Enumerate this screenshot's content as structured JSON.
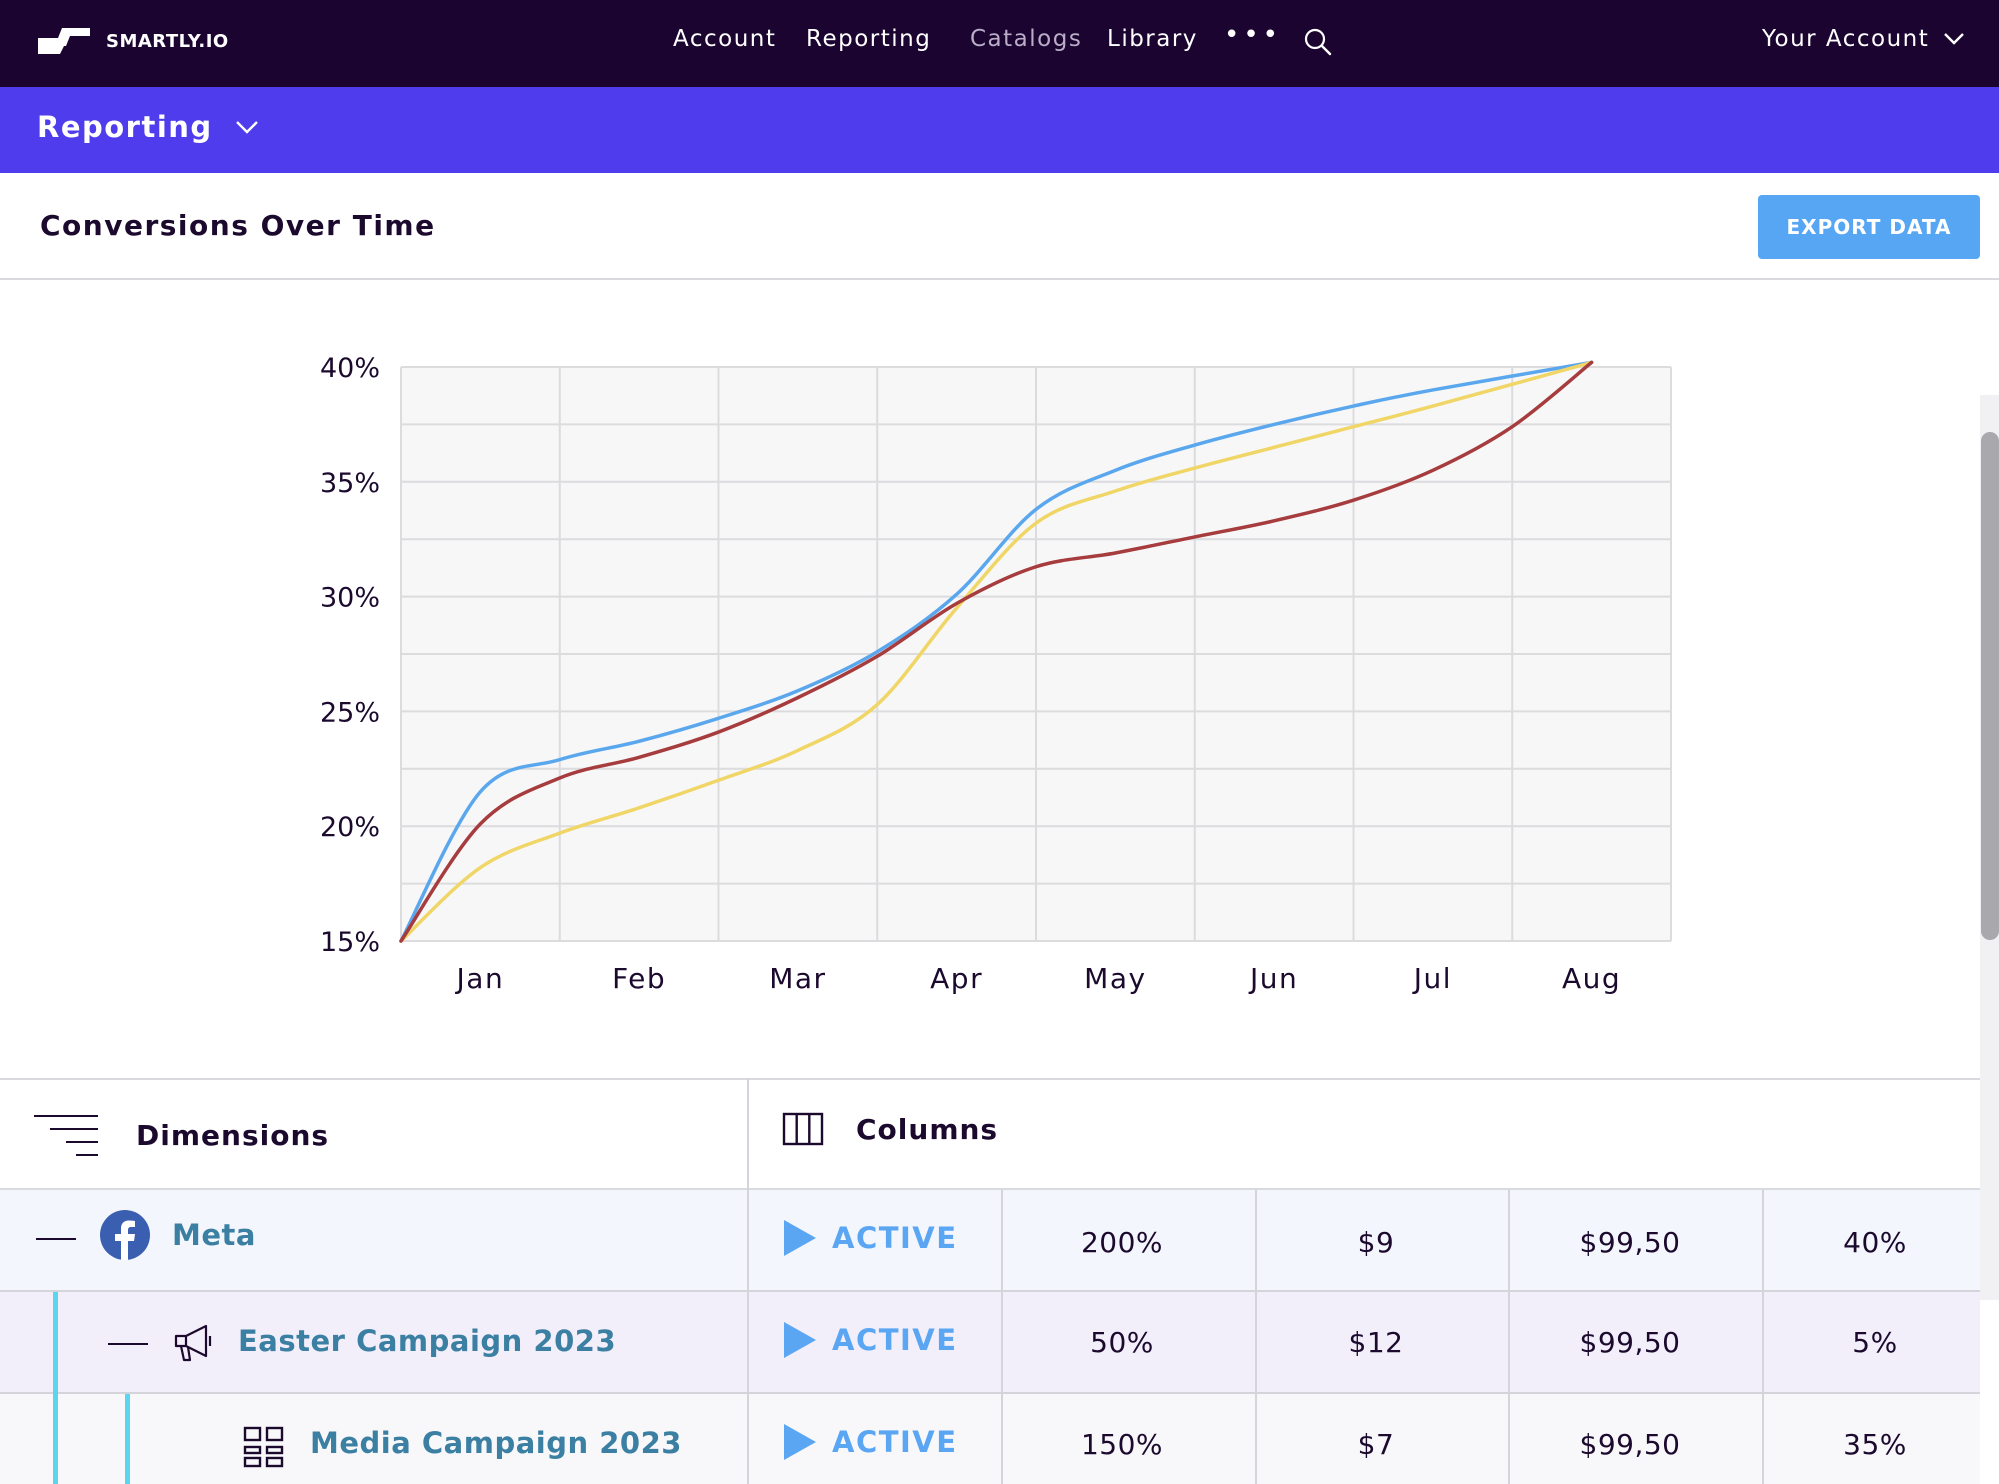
{
  "nav": {
    "logo_text": "SMARTLY.IO",
    "items": [
      {
        "label": "Account"
      },
      {
        "label": "Reporting"
      },
      {
        "label": "Catalogs"
      },
      {
        "label": "Library"
      }
    ],
    "more": "•••",
    "account_label": "Your Account"
  },
  "subbar": {
    "title": "Reporting"
  },
  "section": {
    "title": "Conversions Over Time",
    "export_label": "EXPORT DATA"
  },
  "chart_data": {
    "type": "line",
    "categories": [
      "Jan",
      "Feb",
      "Mar",
      "Apr",
      "May",
      "Jun",
      "Jul",
      "Aug"
    ],
    "y_ticks": [
      "40%",
      "35%",
      "30%",
      "25%",
      "20%",
      "15%"
    ],
    "ylim": [
      15,
      40
    ],
    "grid": true,
    "series": [
      {
        "color": "#5aa7ee",
        "x": [
          0,
          0.5,
          1,
          1.5,
          2,
          2.5,
          3,
          3.5,
          4,
          4.5,
          5,
          5.5,
          6,
          6.5,
          7.5
        ],
        "values": [
          15,
          21.5,
          22.9,
          23.7,
          24.7,
          25.9,
          27.6,
          30.1,
          33.8,
          35.5,
          36.6,
          37.5,
          38.3,
          39.0,
          40.2
        ]
      },
      {
        "color": "#f0d667",
        "x": [
          0,
          0.5,
          1,
          1.5,
          2,
          2.5,
          3,
          3.5,
          4,
          4.5,
          5,
          5.5,
          6,
          6.5,
          7.5
        ],
        "values": [
          15,
          18.2,
          19.7,
          20.8,
          22.0,
          23.3,
          25.3,
          29.5,
          33.2,
          34.6,
          35.6,
          36.5,
          37.4,
          38.3,
          40.2
        ]
      },
      {
        "color": "#a63c3d",
        "x": [
          0,
          0.5,
          1,
          1.5,
          2,
          2.5,
          3,
          3.5,
          4,
          4.5,
          5,
          5.5,
          6,
          6.5,
          7,
          7.5
        ],
        "values": [
          15,
          20.1,
          22.1,
          23.0,
          24.1,
          25.6,
          27.4,
          29.7,
          31.3,
          31.9,
          32.6,
          33.3,
          34.2,
          35.5,
          37.4,
          40.2
        ]
      }
    ]
  },
  "table": {
    "dimensions_label": "Dimensions",
    "columns_label": "Columns",
    "rows": [
      {
        "name": "Meta",
        "status": "ACTIVE",
        "values": [
          "200%",
          "$9",
          "$99,50",
          "40%"
        ]
      },
      {
        "name": "Easter Campaign 2023",
        "status": "ACTIVE",
        "values": [
          "50%",
          "$12",
          "$99,50",
          "5%"
        ]
      },
      {
        "name": "Media Campaign 2023",
        "status": "ACTIVE",
        "values": [
          "150%",
          "$7",
          "$99,50",
          "35%"
        ]
      }
    ]
  }
}
